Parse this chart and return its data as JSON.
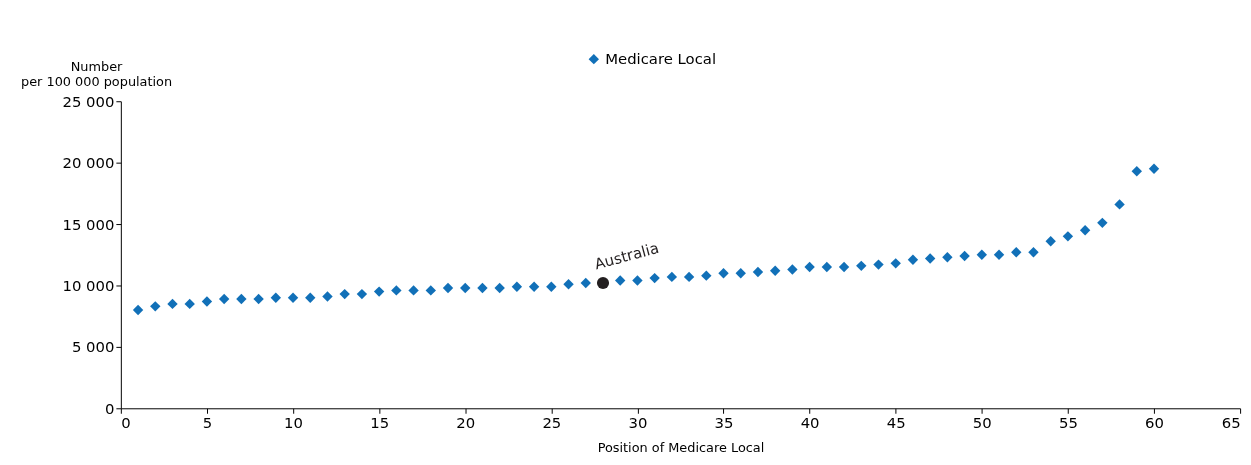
{
  "chart_data": {
    "type": "scatter",
    "xlabel": "Position of Medicare Local",
    "ylabel": "Number\nper 100 000 population",
    "xlim": [
      0,
      65
    ],
    "xticks": [
      0,
      5,
      10,
      15,
      20,
      25,
      30,
      35,
      40,
      45,
      50,
      55,
      60,
      65
    ],
    "ylim": [
      0,
      25000
    ],
    "yticks": [
      {
        "value": 0,
        "label": "0"
      },
      {
        "value": 5000,
        "label": "5 000"
      },
      {
        "value": 10000,
        "label": "10 000"
      },
      {
        "value": 15000,
        "label": "15 000"
      },
      {
        "value": 20000,
        "label": "20 000"
      },
      {
        "value": 25000,
        "label": "25 000"
      }
    ],
    "grid": false,
    "legend": "top",
    "series": [
      {
        "name": "Medicare Local",
        "color": "#1170b8",
        "marker": "diamond",
        "x": [
          1,
          2,
          3,
          4,
          5,
          6,
          7,
          8,
          9,
          10,
          11,
          12,
          13,
          14,
          15,
          16,
          17,
          18,
          19,
          20,
          21,
          22,
          23,
          24,
          25,
          26,
          27,
          29,
          30,
          31,
          32,
          33,
          34,
          35,
          36,
          37,
          38,
          39,
          40,
          41,
          42,
          43,
          44,
          45,
          46,
          47,
          48,
          49,
          50,
          51,
          52,
          53,
          54,
          55,
          56,
          57,
          58,
          59,
          60
        ],
        "values": [
          8000,
          8300,
          8500,
          8500,
          8700,
          8900,
          8900,
          8900,
          9000,
          9000,
          9000,
          9100,
          9300,
          9300,
          9500,
          9600,
          9600,
          9600,
          9800,
          9800,
          9800,
          9800,
          9900,
          9900,
          9900,
          10100,
          10200,
          10400,
          10400,
          10600,
          10700,
          10700,
          10800,
          11000,
          11000,
          11100,
          11200,
          11300,
          11500,
          11500,
          11500,
          11600,
          11700,
          11800,
          12100,
          12200,
          12300,
          12400,
          12500,
          12500,
          12700,
          12700,
          13600,
          14000,
          14500,
          15100,
          16600,
          19300,
          19500
        ]
      },
      {
        "name": "Australia",
        "color": "#231f20",
        "marker": "circle",
        "x": [
          28
        ],
        "values": [
          10200
        ]
      }
    ]
  }
}
